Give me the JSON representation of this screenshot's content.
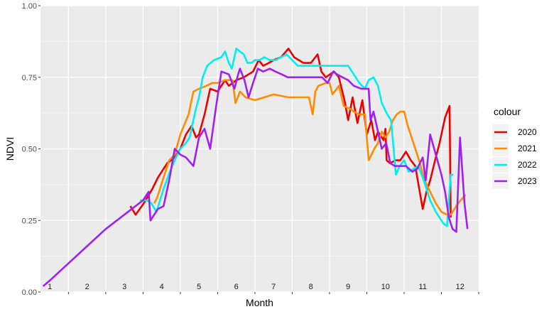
{
  "chart_data": {
    "type": "line",
    "xlabel": "Month",
    "ylabel": "NDVI",
    "ylim": [
      0,
      1
    ],
    "xlim": [
      0.75,
      12.5
    ],
    "y_ticks": [
      "0.00",
      "0.25",
      "0.50",
      "0.75",
      "1.00"
    ],
    "y_tick_values": [
      0,
      0.25,
      0.5,
      0.75,
      1.0
    ],
    "month_labels": [
      "1",
      "2",
      "3",
      "4",
      "5",
      "6",
      "7",
      "8",
      "9",
      "10",
      "11",
      "12"
    ],
    "grid": true,
    "legend": {
      "title": "colour",
      "position": "right"
    },
    "series": [
      {
        "name": "2020",
        "color": "#ee0000",
        "points": [
          [
            3.16,
            0.3
          ],
          [
            3.3,
            0.27
          ],
          [
            3.52,
            0.31
          ],
          [
            3.75,
            0.36
          ],
          [
            3.9,
            0.4
          ],
          [
            4.15,
            0.45
          ],
          [
            4.35,
            0.47
          ],
          [
            4.5,
            0.5
          ],
          [
            4.65,
            0.55
          ],
          [
            4.8,
            0.58
          ],
          [
            4.92,
            0.54
          ],
          [
            5.0,
            0.55
          ],
          [
            5.15,
            0.62
          ],
          [
            5.3,
            0.71
          ],
          [
            5.5,
            0.7
          ],
          [
            5.7,
            0.74
          ],
          [
            5.8,
            0.72
          ],
          [
            6.0,
            0.74
          ],
          [
            6.2,
            0.75
          ],
          [
            6.45,
            0.77
          ],
          [
            6.6,
            0.81
          ],
          [
            6.72,
            0.79
          ],
          [
            6.87,
            0.8
          ],
          [
            7.0,
            0.81
          ],
          [
            7.2,
            0.82
          ],
          [
            7.4,
            0.85
          ],
          [
            7.55,
            0.82
          ],
          [
            7.8,
            0.8
          ],
          [
            8.0,
            0.8
          ],
          [
            8.18,
            0.83
          ],
          [
            8.28,
            0.77
          ],
          [
            8.4,
            0.75
          ],
          [
            8.62,
            0.77
          ],
          [
            8.75,
            0.75
          ],
          [
            8.9,
            0.67
          ],
          [
            9.0,
            0.6
          ],
          [
            9.12,
            0.68
          ],
          [
            9.25,
            0.59
          ],
          [
            9.38,
            0.67
          ],
          [
            9.5,
            0.55
          ],
          [
            9.62,
            0.6
          ],
          [
            9.72,
            0.53
          ],
          [
            9.8,
            0.56
          ],
          [
            9.95,
            0.53
          ],
          [
            10.0,
            0.57
          ],
          [
            10.03,
            0.46
          ],
          [
            10.12,
            0.45
          ],
          [
            10.28,
            0.46
          ],
          [
            10.4,
            0.46
          ],
          [
            10.55,
            0.49
          ],
          [
            10.68,
            0.46
          ],
          [
            10.8,
            0.44
          ],
          [
            11.0,
            0.29
          ],
          [
            11.1,
            0.35
          ],
          [
            11.2,
            0.39
          ],
          [
            11.35,
            0.47
          ],
          [
            11.45,
            0.52
          ],
          [
            11.6,
            0.61
          ],
          [
            11.72,
            0.65
          ],
          [
            11.75,
            0.26
          ]
        ]
      },
      {
        "name": "2021",
        "color": "#ff8c00",
        "points": [
          [
            3.8,
            0.31
          ],
          [
            3.88,
            0.33
          ],
          [
            4.0,
            0.38
          ],
          [
            4.2,
            0.46
          ],
          [
            4.35,
            0.48
          ],
          [
            4.5,
            0.55
          ],
          [
            4.72,
            0.62
          ],
          [
            4.85,
            0.7
          ],
          [
            5.0,
            0.71
          ],
          [
            5.2,
            0.72
          ],
          [
            5.35,
            0.73
          ],
          [
            5.5,
            0.73
          ],
          [
            5.7,
            0.74
          ],
          [
            5.9,
            0.74
          ],
          [
            5.98,
            0.66
          ],
          [
            6.1,
            0.7
          ],
          [
            6.25,
            0.68
          ],
          [
            6.5,
            0.67
          ],
          [
            6.75,
            0.68
          ],
          [
            7.0,
            0.69
          ],
          [
            7.4,
            0.68
          ],
          [
            7.8,
            0.68
          ],
          [
            7.95,
            0.68
          ],
          [
            8.05,
            0.62
          ],
          [
            8.12,
            0.7
          ],
          [
            8.2,
            0.72
          ],
          [
            8.4,
            0.73
          ],
          [
            8.5,
            0.73
          ],
          [
            8.58,
            0.69
          ],
          [
            8.75,
            0.72
          ],
          [
            8.88,
            0.65
          ],
          [
            9.05,
            0.64
          ],
          [
            9.15,
            0.63
          ],
          [
            9.3,
            0.62
          ],
          [
            9.45,
            0.62
          ],
          [
            9.55,
            0.46
          ],
          [
            9.7,
            0.5
          ],
          [
            9.8,
            0.52
          ],
          [
            9.9,
            0.56
          ],
          [
            10.0,
            0.54
          ],
          [
            10.1,
            0.56
          ],
          [
            10.2,
            0.6
          ],
          [
            10.3,
            0.62
          ],
          [
            10.4,
            0.63
          ],
          [
            10.5,
            0.63
          ],
          [
            10.6,
            0.58
          ],
          [
            10.75,
            0.52
          ],
          [
            10.9,
            0.46
          ],
          [
            11.05,
            0.39
          ],
          [
            11.2,
            0.35
          ],
          [
            11.35,
            0.31
          ],
          [
            11.5,
            0.28
          ],
          [
            11.65,
            0.27
          ],
          [
            11.75,
            0.27
          ],
          [
            11.95,
            0.31
          ],
          [
            12.15,
            0.34
          ]
        ]
      },
      {
        "name": "2022",
        "color": "#00eeee",
        "points": [
          [
            3.42,
            0.32
          ],
          [
            3.6,
            0.32
          ],
          [
            3.72,
            0.31
          ],
          [
            3.86,
            0.28
          ],
          [
            4.05,
            0.36
          ],
          [
            4.22,
            0.42
          ],
          [
            4.38,
            0.47
          ],
          [
            4.5,
            0.5
          ],
          [
            4.65,
            0.52
          ],
          [
            4.75,
            0.54
          ],
          [
            4.9,
            0.63
          ],
          [
            5.0,
            0.68
          ],
          [
            5.1,
            0.75
          ],
          [
            5.22,
            0.79
          ],
          [
            5.4,
            0.81
          ],
          [
            5.6,
            0.82
          ],
          [
            5.7,
            0.84
          ],
          [
            5.8,
            0.8
          ],
          [
            5.88,
            0.78
          ],
          [
            6.0,
            0.85
          ],
          [
            6.1,
            0.84
          ],
          [
            6.2,
            0.83
          ],
          [
            6.3,
            0.8
          ],
          [
            6.4,
            0.8
          ],
          [
            6.5,
            0.81
          ],
          [
            6.62,
            0.81
          ],
          [
            6.75,
            0.82
          ],
          [
            6.9,
            0.81
          ],
          [
            7.05,
            0.81
          ],
          [
            7.2,
            0.82
          ],
          [
            7.35,
            0.83
          ],
          [
            7.5,
            0.81
          ],
          [
            7.65,
            0.79
          ],
          [
            7.8,
            0.79
          ],
          [
            8.0,
            0.79
          ],
          [
            8.3,
            0.79
          ],
          [
            8.6,
            0.79
          ],
          [
            9.0,
            0.79
          ],
          [
            9.3,
            0.73
          ],
          [
            9.45,
            0.71
          ],
          [
            9.55,
            0.74
          ],
          [
            9.68,
            0.75
          ],
          [
            9.8,
            0.72
          ],
          [
            9.9,
            0.66
          ],
          [
            10.05,
            0.62
          ],
          [
            10.15,
            0.6
          ],
          [
            10.28,
            0.41
          ],
          [
            10.38,
            0.44
          ],
          [
            10.5,
            0.46
          ],
          [
            10.62,
            0.42
          ],
          [
            10.75,
            0.43
          ],
          [
            10.88,
            0.44
          ],
          [
            11.0,
            0.4
          ],
          [
            11.2,
            0.32
          ],
          [
            11.35,
            0.28
          ],
          [
            11.55,
            0.24
          ],
          [
            11.65,
            0.23
          ],
          [
            11.75,
            0.41
          ],
          [
            11.82,
            0.41
          ]
        ]
      },
      {
        "name": "2023",
        "color": "#a020f0",
        "points": [
          [
            0.82,
            0.02
          ],
          [
            1.0,
            0.04
          ],
          [
            1.5,
            0.1
          ],
          [
            2.0,
            0.16
          ],
          [
            2.5,
            0.22
          ],
          [
            3.0,
            0.27
          ],
          [
            3.5,
            0.32
          ],
          [
            3.65,
            0.35
          ],
          [
            3.7,
            0.25
          ],
          [
            3.9,
            0.29
          ],
          [
            4.05,
            0.3
          ],
          [
            4.2,
            0.39
          ],
          [
            4.35,
            0.5
          ],
          [
            4.5,
            0.48
          ],
          [
            4.65,
            0.47
          ],
          [
            4.85,
            0.44
          ],
          [
            5.0,
            0.54
          ],
          [
            5.15,
            0.57
          ],
          [
            5.3,
            0.5
          ],
          [
            5.45,
            0.64
          ],
          [
            5.6,
            0.77
          ],
          [
            5.8,
            0.76
          ],
          [
            5.95,
            0.71
          ],
          [
            6.05,
            0.76
          ],
          [
            6.1,
            0.78
          ],
          [
            6.22,
            0.74
          ],
          [
            6.33,
            0.68
          ],
          [
            6.45,
            0.73
          ],
          [
            6.58,
            0.78
          ],
          [
            6.72,
            0.77
          ],
          [
            6.9,
            0.78
          ],
          [
            7.05,
            0.77
          ],
          [
            7.22,
            0.76
          ],
          [
            7.38,
            0.75
          ],
          [
            7.55,
            0.75
          ],
          [
            7.7,
            0.75
          ],
          [
            7.9,
            0.75
          ],
          [
            8.1,
            0.75
          ],
          [
            8.3,
            0.75
          ],
          [
            8.45,
            0.73
          ],
          [
            8.6,
            0.77
          ],
          [
            8.7,
            0.76
          ],
          [
            8.85,
            0.75
          ],
          [
            9.0,
            0.74
          ],
          [
            9.15,
            0.72
          ],
          [
            9.35,
            0.71
          ],
          [
            9.55,
            0.71
          ],
          [
            9.6,
            0.6
          ],
          [
            9.68,
            0.63
          ],
          [
            9.8,
            0.56
          ],
          [
            9.9,
            0.5
          ],
          [
            10.02,
            0.52
          ],
          [
            10.13,
            0.45
          ],
          [
            10.25,
            0.44
          ],
          [
            10.4,
            0.44
          ],
          [
            10.55,
            0.44
          ],
          [
            10.72,
            0.42
          ],
          [
            10.85,
            0.43
          ],
          [
            11.0,
            0.47
          ],
          [
            11.08,
            0.39
          ],
          [
            11.2,
            0.55
          ],
          [
            11.35,
            0.48
          ],
          [
            11.5,
            0.41
          ],
          [
            11.6,
            0.35
          ],
          [
            11.7,
            0.26
          ],
          [
            11.8,
            0.22
          ],
          [
            11.9,
            0.21
          ],
          [
            12.0,
            0.54
          ],
          [
            12.12,
            0.31
          ],
          [
            12.2,
            0.22
          ]
        ]
      }
    ]
  }
}
